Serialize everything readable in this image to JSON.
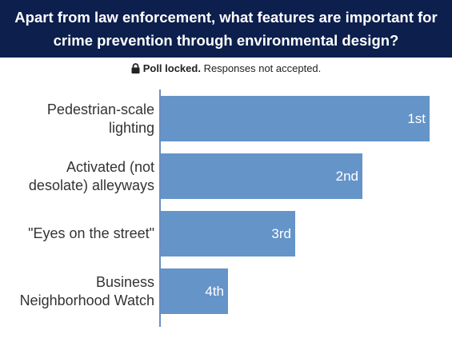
{
  "poll": {
    "question": "Apart from law enforcement, what features are important for crime prevention through environmental design?",
    "status_bold": "Poll locked.",
    "status_text": " Responses not accepted.",
    "lock_icon": "lock-icon"
  },
  "chart_data": {
    "type": "bar",
    "orientation": "horizontal",
    "categories": [
      "Pedestrian-scale lighting",
      "Activated (not desolate) alleyways",
      "\"Eyes on the street\"",
      "Business Neighborhood Watch"
    ],
    "values": [
      4,
      3,
      2,
      1
    ],
    "data_labels": [
      "1st",
      "2nd",
      "3rd",
      "4th"
    ],
    "xlim": [
      0,
      4
    ],
    "grid": false,
    "legend": "none",
    "colors": {
      "bar": "#6594c8",
      "header_bg": "#0c1f4d"
    }
  }
}
